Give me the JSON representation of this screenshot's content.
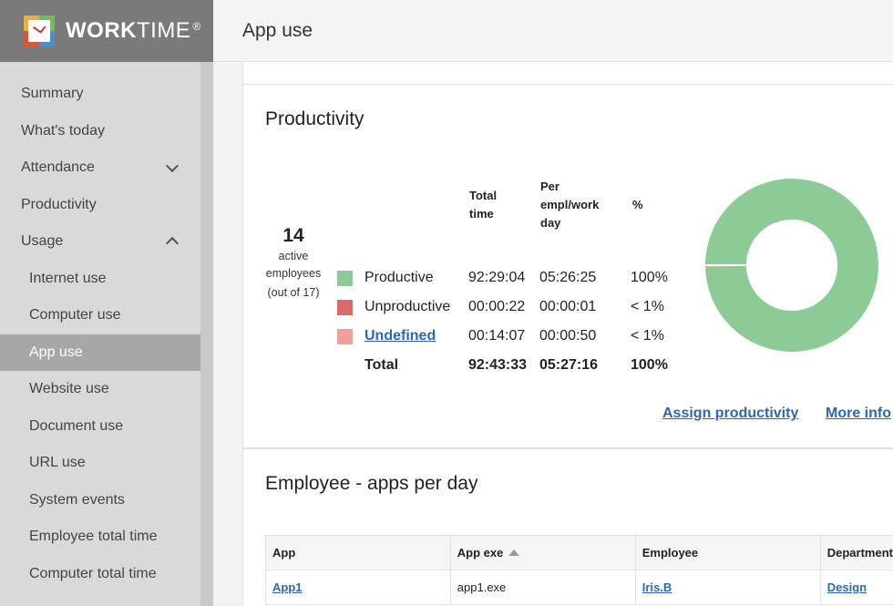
{
  "brand": {
    "name_bold": "WORK",
    "name_light": "TIME",
    "mark": "®"
  },
  "header": {
    "title": "App use"
  },
  "sidebar": {
    "items": [
      {
        "label": "Summary",
        "sub": false
      },
      {
        "label": "What's today",
        "sub": false
      },
      {
        "label": "Attendance",
        "sub": false,
        "chevron": "chevron-down-icon"
      },
      {
        "label": "Productivity",
        "sub": false
      },
      {
        "label": "Usage",
        "sub": false,
        "chevron": "chevron-up-icon"
      },
      {
        "label": "Internet use",
        "sub": true
      },
      {
        "label": "Computer use",
        "sub": true
      },
      {
        "label": "App use",
        "sub": true,
        "active": true
      },
      {
        "label": "Website use",
        "sub": true
      },
      {
        "label": "Document use",
        "sub": true
      },
      {
        "label": "URL use",
        "sub": true
      },
      {
        "label": "System events",
        "sub": true
      },
      {
        "label": "Employee total time",
        "sub": true
      },
      {
        "label": "Computer total time",
        "sub": true
      }
    ]
  },
  "productivity": {
    "title": "Productivity",
    "employees": {
      "count": "14",
      "label1": "active",
      "label2": "employees",
      "label3": "(out of 17)"
    },
    "columns": {
      "total_time": [
        "Total",
        "time"
      ],
      "per_empl": [
        "Per",
        "empl/work",
        "day"
      ],
      "pct": "%"
    },
    "rows": [
      {
        "label": "Productive",
        "total": "92:29:04",
        "per": "05:26:25",
        "pct": "100%",
        "color": "#8ccb96",
        "link": false
      },
      {
        "label": "Unproductive",
        "total": "00:00:22",
        "per": "00:00:01",
        "pct": "< 1%",
        "color": "#d96a6a",
        "link": false
      },
      {
        "label": "Undefined",
        "total": "00:14:07",
        "per": "00:00:50",
        "pct": "< 1%",
        "color": "#f0a09a",
        "link": true
      }
    ],
    "total": {
      "label": "Total",
      "total": "92:43:33",
      "per": "05:27:16",
      "pct": "100%"
    },
    "actions": {
      "assign": "Assign productivity",
      "more": "More info"
    }
  },
  "chart_data": {
    "type": "pie",
    "labels": [
      "Productive",
      "Unproductive",
      "Undefined"
    ],
    "values": [
      99.74,
      0.04,
      0.25
    ],
    "colors": [
      "#8ccb96",
      "#d96a6a",
      "#f0a09a"
    ]
  },
  "apps": {
    "title": "Employee - apps per day",
    "columns": [
      "App",
      "App exe",
      "Employee",
      "Department"
    ],
    "rows": [
      {
        "app": "App1",
        "exe": "app1.exe",
        "employee": "Iris.B",
        "department": "Design"
      }
    ]
  }
}
